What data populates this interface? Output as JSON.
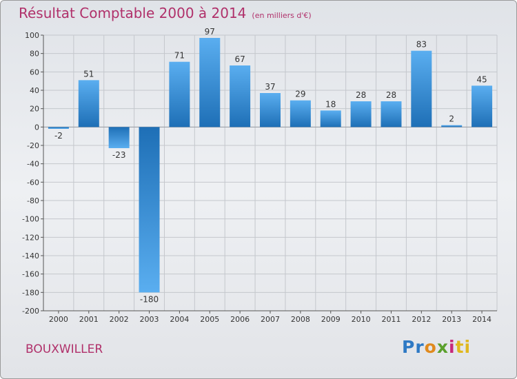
{
  "header": {
    "title": "Résultat Comptable 2000 à 2014",
    "subtitle": "(en milliers d'€)"
  },
  "commune": "BOUXWILLER",
  "logo": {
    "parts": [
      "Pr",
      "o",
      "x",
      "i",
      "ti"
    ],
    "colors": [
      "#2e79c4",
      "#e08a1e",
      "#5aa02c",
      "#c8287a",
      "#e0b81e"
    ]
  },
  "chart_data": {
    "type": "bar",
    "title": "Résultat Comptable 2000 à 2014",
    "xlabel": "",
    "ylabel": "",
    "categories": [
      "2000",
      "2001",
      "2002",
      "2003",
      "2004",
      "2005",
      "2006",
      "2007",
      "2008",
      "2009",
      "2010",
      "2011",
      "2012",
      "2013",
      "2014"
    ],
    "values": [
      -2,
      51,
      -23,
      -180,
      71,
      97,
      67,
      37,
      29,
      18,
      28,
      28,
      83,
      2,
      45
    ],
    "data_labels": [
      "-2",
      "51",
      "-23",
      "-180",
      "71",
      "97",
      "67",
      "37",
      "29",
      "18",
      "28",
      "28",
      "83",
      "2",
      "45"
    ],
    "ylim": [
      -200,
      100
    ],
    "yticks": [
      100,
      80,
      60,
      40,
      20,
      0,
      -20,
      -40,
      -60,
      -80,
      -100,
      -120,
      -140,
      -160,
      -180,
      -200
    ],
    "ytick_labels": [
      "100",
      "80",
      "60",
      "40",
      "20",
      "0",
      "-20",
      "-40",
      "-60",
      "-80",
      "-100",
      "-120",
      "-140",
      "-160",
      "-180",
      "-200"
    ],
    "grid": true,
    "bar_color": "#3d8fd4"
  }
}
